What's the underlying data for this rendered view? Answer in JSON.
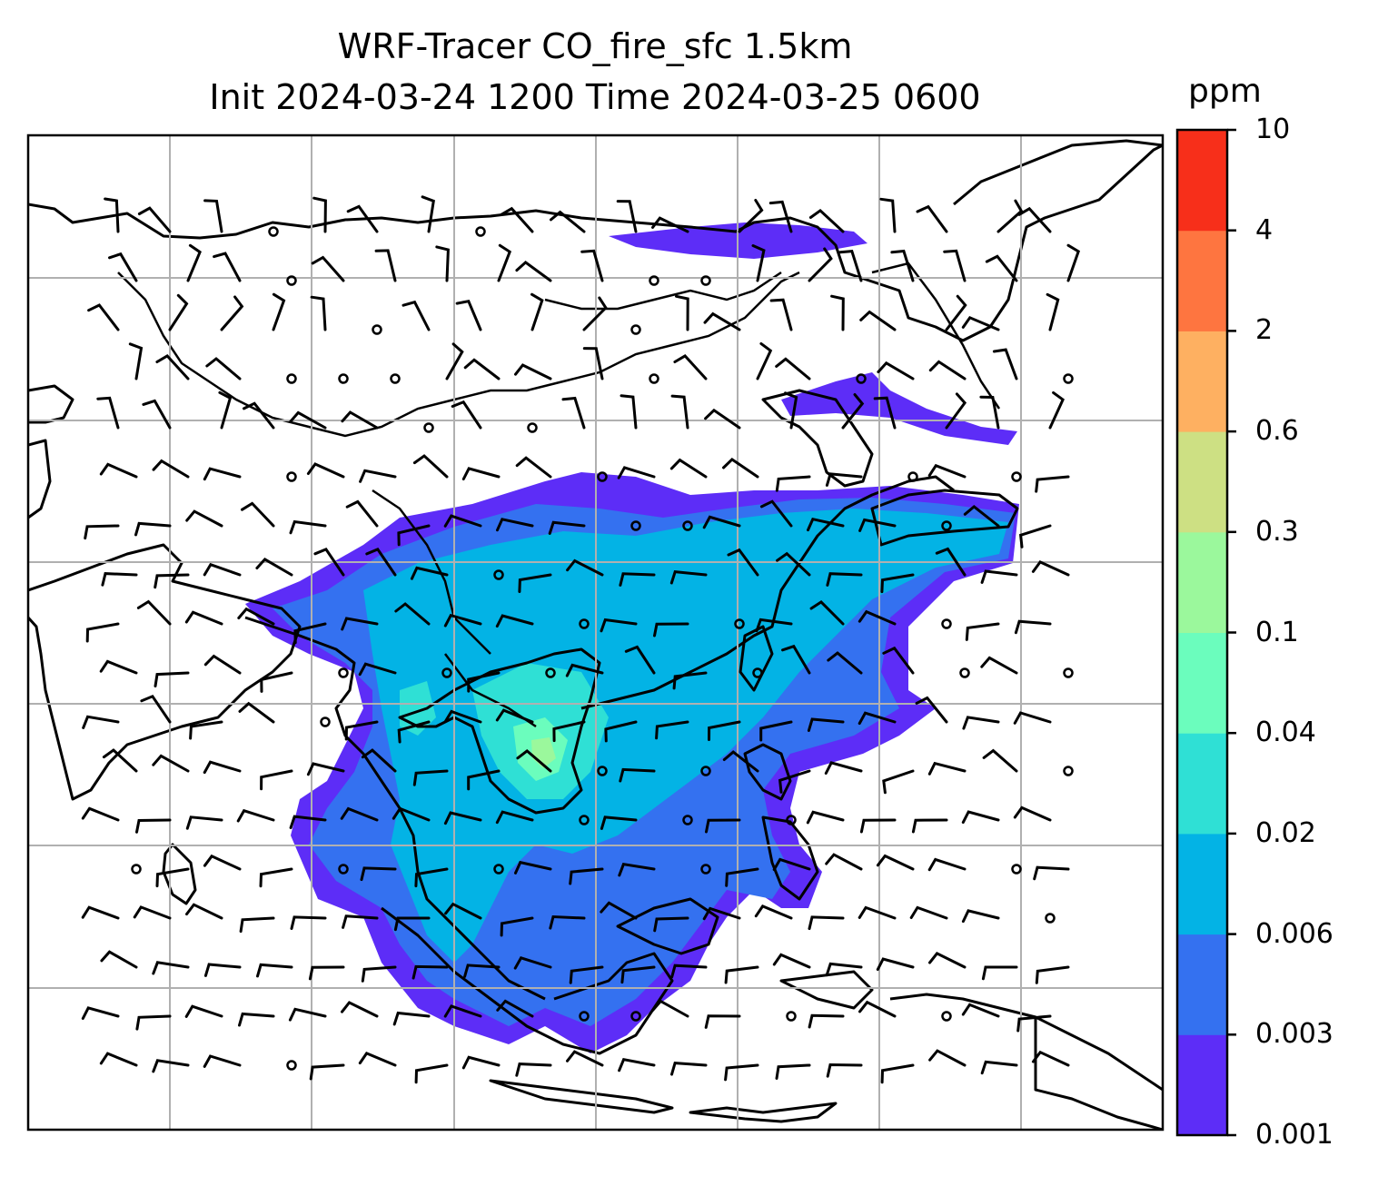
{
  "title_line1": "WRF-Tracer CO_fire_sfc 1.5km",
  "title_line2": "Init 2024-03-24 1200 Time 2024-03-25 0600",
  "colorbar": {
    "unit": "ppm",
    "ticks": [
      "0.001",
      "0.003",
      "0.006",
      "0.02",
      "0.04",
      "0.1",
      "0.3",
      "0.6",
      "2",
      "4",
      "10"
    ],
    "colors": [
      "#5d2df7",
      "#3471f0",
      "#03b3e5",
      "#2fe0d5",
      "#6bfdbd",
      "#9bf89c",
      "#cde083",
      "#feb061",
      "#fe7540",
      "#f72f1a"
    ]
  },
  "map": {
    "grid": "on",
    "overlays": [
      "coastlines",
      "country-borders",
      "wind-barbs",
      "calm-circles"
    ]
  }
}
